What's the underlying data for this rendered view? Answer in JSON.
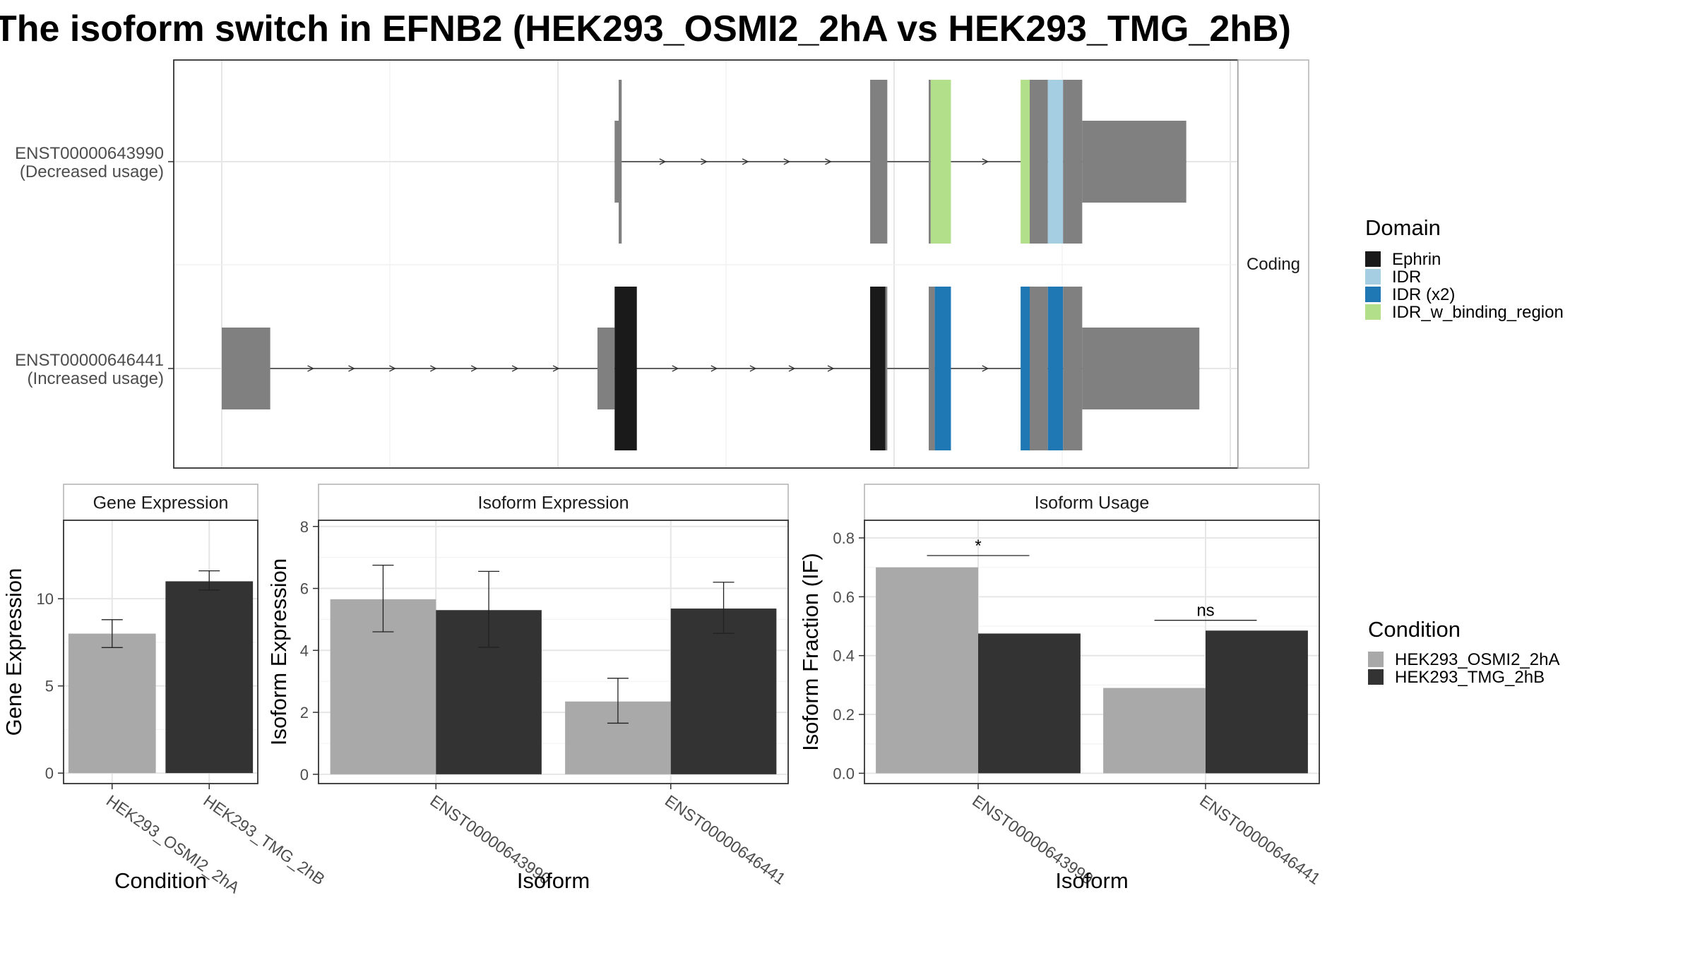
{
  "title": "The isoform switch in EFNB2 (HEK293_OSMI2_2hA vs HEK293_TMG_2hB)",
  "colors": {
    "HEK293_OSMI2_2hA": "#a9a9a9",
    "HEK293_TMG_2hB": "#333333",
    "Ephrin": "#1a1a1a",
    "IDR": "#a6cee3",
    "IDR (x2)": "#1f78b4",
    "IDR_w_binding_region": "#b2df8a",
    "exon": "#808080"
  },
  "chart_data": [
    {
      "type": "gene-structure",
      "facet_label": "Coding",
      "transcripts": [
        {
          "id": "ENST00000643990",
          "usage_label": "(Decreased usage)",
          "segments": [
            {
              "start": 0.389,
              "end": 0.393,
              "kind": "utr",
              "domain": null
            },
            {
              "start": 0.393,
              "end": 0.396,
              "kind": "cds",
              "domain": null
            },
            {
              "start": 0.642,
              "end": 0.659,
              "kind": "cds",
              "domain": null
            },
            {
              "start": 0.7,
              "end": 0.702,
              "kind": "cds",
              "domain": null
            },
            {
              "start": 0.702,
              "end": 0.722,
              "kind": "cds",
              "domain": "IDR_w_binding_region"
            },
            {
              "start": 0.791,
              "end": 0.8,
              "kind": "cds",
              "domain": "IDR_w_binding_region"
            },
            {
              "start": 0.8,
              "end": 0.818,
              "kind": "cds",
              "domain": null
            },
            {
              "start": 0.818,
              "end": 0.833,
              "kind": "cds",
              "domain": "IDR"
            },
            {
              "start": 0.833,
              "end": 0.852,
              "kind": "cds",
              "domain": null
            },
            {
              "start": 0.852,
              "end": 0.955,
              "kind": "utr",
              "domain": null
            }
          ]
        },
        {
          "id": "ENST00000646441",
          "usage_label": "(Increased usage)",
          "segments": [
            {
              "start": 0.0,
              "end": 0.048,
              "kind": "utr",
              "domain": null
            },
            {
              "start": 0.372,
              "end": 0.389,
              "kind": "utr",
              "domain": null
            },
            {
              "start": 0.389,
              "end": 0.411,
              "kind": "cds",
              "domain": "Ephrin"
            },
            {
              "start": 0.642,
              "end": 0.657,
              "kind": "cds",
              "domain": "Ephrin"
            },
            {
              "start": 0.657,
              "end": 0.659,
              "kind": "cds",
              "domain": null
            },
            {
              "start": 0.7,
              "end": 0.706,
              "kind": "cds",
              "domain": null
            },
            {
              "start": 0.706,
              "end": 0.722,
              "kind": "cds",
              "domain": "IDR (x2)"
            },
            {
              "start": 0.791,
              "end": 0.8,
              "kind": "cds",
              "domain": "IDR (x2)"
            },
            {
              "start": 0.8,
              "end": 0.818,
              "kind": "cds",
              "domain": null
            },
            {
              "start": 0.818,
              "end": 0.833,
              "kind": "cds",
              "domain": "IDR (x2)"
            },
            {
              "start": 0.833,
              "end": 0.852,
              "kind": "cds",
              "domain": null
            },
            {
              "start": 0.852,
              "end": 0.968,
              "kind": "utr",
              "domain": null
            }
          ]
        }
      ],
      "legend": {
        "title": "Domain",
        "entries": [
          "Ephrin",
          "IDR",
          "IDR (x2)",
          "IDR_w_binding_region"
        ]
      }
    },
    {
      "type": "bar",
      "panel_title": "Gene Expression",
      "xlabel": "Condition",
      "ylabel": "Gene Expression",
      "ylim": [
        -0.6,
        14.5
      ],
      "yticks": [
        0,
        5,
        10
      ],
      "categories": [
        "HEK293_OSMI2_2hA",
        "HEK293_TMG_2hB"
      ],
      "values": [
        8.0,
        11.0
      ],
      "error_low": [
        7.2,
        10.5
      ],
      "error_high": [
        8.8,
        11.6
      ]
    },
    {
      "type": "bar",
      "panel_title": "Isoform Expression",
      "xlabel": "Isoform",
      "ylabel": "Isoform Expression",
      "ylim": [
        -0.3,
        8.2
      ],
      "yticks": [
        0,
        2,
        4,
        6,
        8
      ],
      "categories": [
        "ENST00000643990",
        "ENST00000646441"
      ],
      "series": [
        {
          "name": "HEK293_OSMI2_2hA",
          "values": [
            5.65,
            2.35
          ],
          "error_low": [
            4.6,
            1.65
          ],
          "error_high": [
            6.75,
            3.1
          ]
        },
        {
          "name": "HEK293_TMG_2hB",
          "values": [
            5.3,
            5.35
          ],
          "error_low": [
            4.1,
            4.55
          ],
          "error_high": [
            6.55,
            6.2
          ]
        }
      ]
    },
    {
      "type": "bar",
      "panel_title": "Isoform Usage",
      "xlabel": "Isoform",
      "ylabel": "Isoform Fraction (IF)",
      "ylim": [
        -0.035,
        0.86
      ],
      "yticks": [
        0.0,
        0.2,
        0.4,
        0.6,
        0.8
      ],
      "ytick_labels": [
        "0.0",
        "0.2",
        "0.4",
        "0.6",
        "0.8"
      ],
      "categories": [
        "ENST00000643990",
        "ENST00000646441"
      ],
      "series": [
        {
          "name": "HEK293_OSMI2_2hA",
          "values": [
            0.7,
            0.29
          ]
        },
        {
          "name": "HEK293_TMG_2hB",
          "values": [
            0.475,
            0.485
          ]
        }
      ],
      "significance": [
        {
          "category": "ENST00000643990",
          "y": 0.74,
          "label": "*"
        },
        {
          "category": "ENST00000646441",
          "y": 0.52,
          "label": "ns"
        }
      ]
    }
  ],
  "condition_legend": {
    "title": "Condition",
    "entries": [
      "HEK293_OSMI2_2hA",
      "HEK293_TMG_2hB"
    ]
  }
}
